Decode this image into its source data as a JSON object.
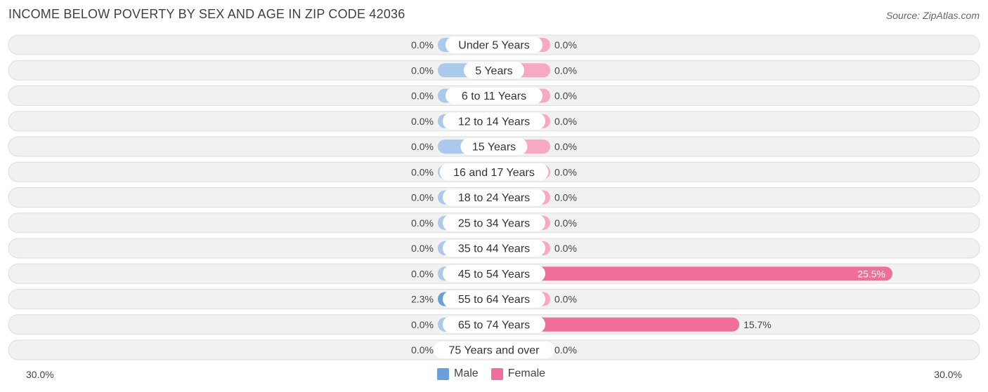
{
  "title": "INCOME BELOW POVERTY BY SEX AND AGE IN ZIP CODE 42036",
  "source": "Source: ZipAtlas.com",
  "colors": {
    "male_light": "#aac9ec",
    "male_strong": "#6a9fdc",
    "female_light": "#f6a9c2",
    "female_strong": "#f06f99",
    "row_bg": "#f1f1f1",
    "row_border": "#dddddd"
  },
  "legend": {
    "male": "Male",
    "female": "Female"
  },
  "axis": {
    "left_label": "30.0%",
    "right_label": "30.0%"
  },
  "chart_data": {
    "type": "bar",
    "orientation": "horizontal-diverging",
    "xlim": [
      -30,
      30
    ],
    "categories": [
      "Under 5 Years",
      "5 Years",
      "6 to 11 Years",
      "12 to 14 Years",
      "15 Years",
      "16 and 17 Years",
      "18 to 24 Years",
      "25 to 34 Years",
      "35 to 44 Years",
      "45 to 54 Years",
      "55 to 64 Years",
      "65 to 74 Years",
      "75 Years and over"
    ],
    "series": [
      {
        "name": "Male",
        "values": [
          0.0,
          0.0,
          0.0,
          0.0,
          0.0,
          0.0,
          0.0,
          0.0,
          0.0,
          0.0,
          2.3,
          0.0,
          0.0
        ],
        "labels": [
          "0.0%",
          "0.0%",
          "0.0%",
          "0.0%",
          "0.0%",
          "0.0%",
          "0.0%",
          "0.0%",
          "0.0%",
          "0.0%",
          "2.3%",
          "0.0%",
          "0.0%"
        ]
      },
      {
        "name": "Female",
        "values": [
          0.0,
          0.0,
          0.0,
          0.0,
          0.0,
          0.0,
          0.0,
          0.0,
          0.0,
          25.5,
          0.0,
          15.7,
          0.0
        ],
        "labels": [
          "0.0%",
          "0.0%",
          "0.0%",
          "0.0%",
          "0.0%",
          "0.0%",
          "0.0%",
          "0.0%",
          "0.0%",
          "25.5%",
          "0.0%",
          "15.7%",
          "0.0%"
        ]
      }
    ],
    "title": "INCOME BELOW POVERTY BY SEX AND AGE IN ZIP CODE 42036",
    "grid": false,
    "legend_position": "bottom-center"
  }
}
